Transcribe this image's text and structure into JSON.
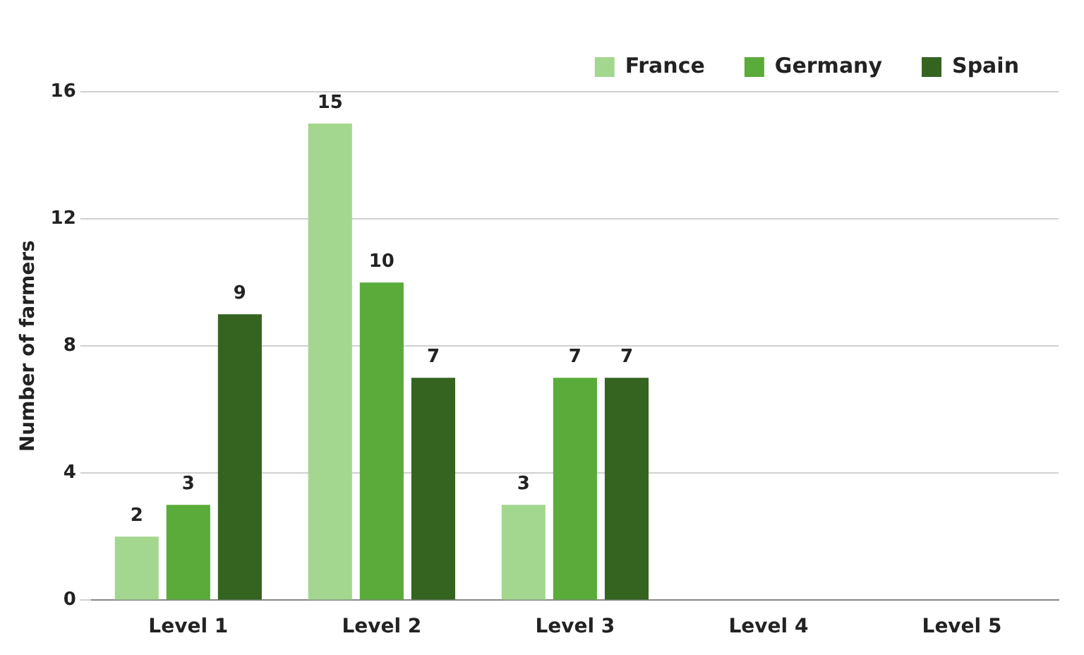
{
  "chart_data": {
    "type": "bar",
    "ylabel": "Number of farmers",
    "categories": [
      "Level 1",
      "Level 2",
      "Level 3",
      "Level 4",
      "Level 5"
    ],
    "series": [
      {
        "name": "France",
        "color": "#a3d78f",
        "values": [
          2,
          15,
          3,
          null,
          null
        ]
      },
      {
        "name": "Germany",
        "color": "#5aab3a",
        "values": [
          3,
          10,
          7,
          null,
          null
        ]
      },
      {
        "name": "Spain",
        "color": "#356421",
        "values": [
          9,
          7,
          7,
          null,
          null
        ]
      }
    ],
    "ylim": [
      0,
      16
    ],
    "yticks": [
      0,
      4,
      8,
      12,
      16
    ],
    "grid": "y",
    "legend": "top right",
    "data_labels": true
  }
}
